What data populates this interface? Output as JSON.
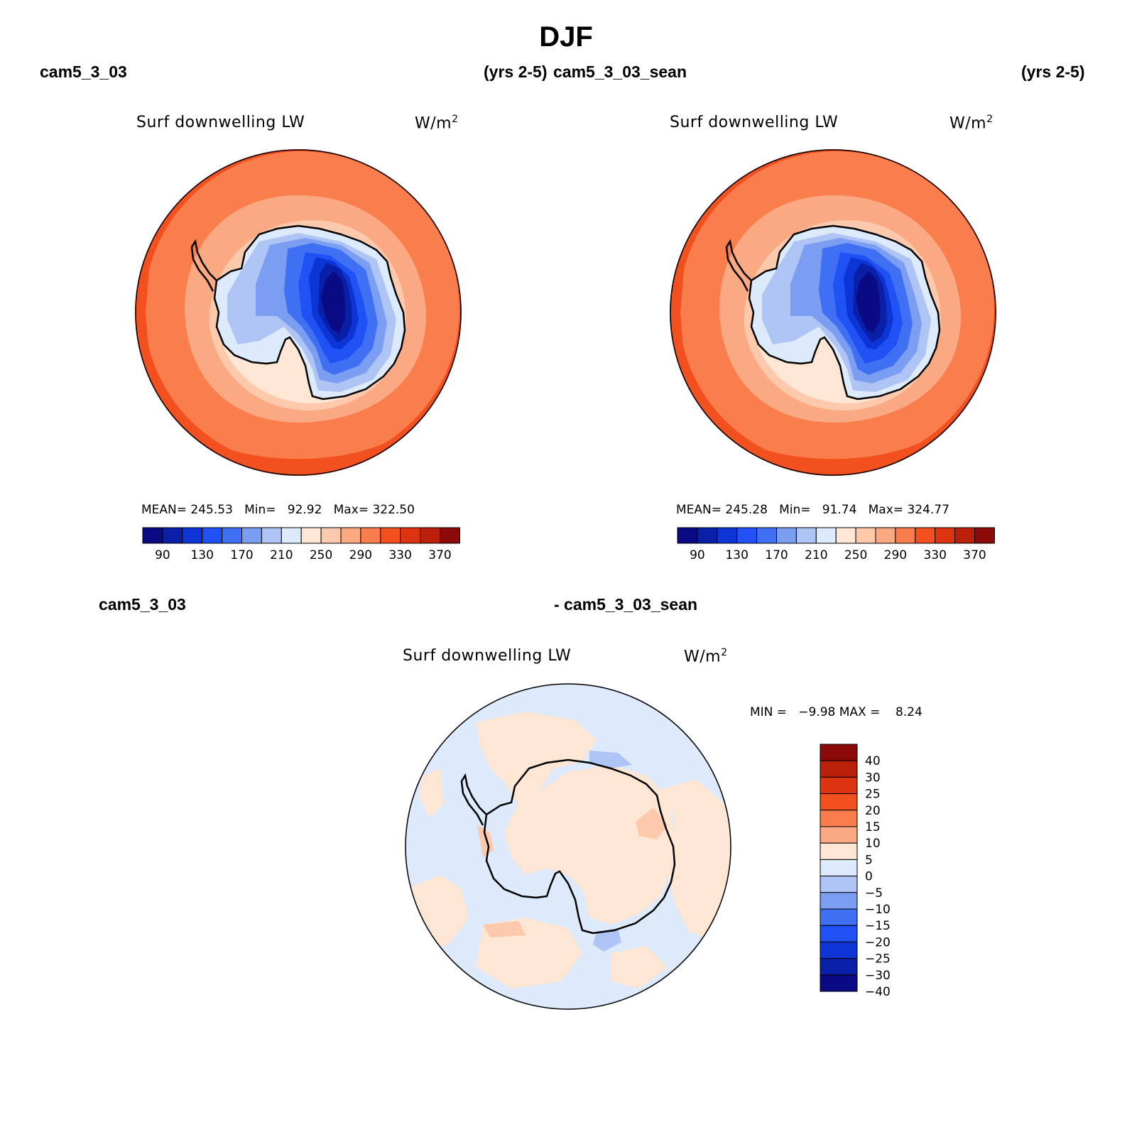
{
  "figure": {
    "title": "DJF"
  },
  "panels": [
    {
      "case": "cam5_3_03",
      "years": "(yrs 2-5)",
      "field": "Surf downwelling LW",
      "units": "W/m",
      "units_sup": "2",
      "stats": {
        "mean_label": "MEAN=",
        "mean": "245.53",
        "min_label": "Min=",
        "min": "92.92",
        "max_label": "Max=",
        "max": "322.50"
      }
    },
    {
      "case": "cam5_3_03_sean",
      "years": "(yrs 2-5)",
      "field": "Surf downwelling LW",
      "units": "W/m",
      "units_sup": "2",
      "stats": {
        "mean_label": "MEAN=",
        "mean": "245.28",
        "min_label": "Min=",
        "min": "91.74",
        "max_label": "Max=",
        "max": "324.77"
      }
    }
  ],
  "diff_panel": {
    "case_a": "cam5_3_03",
    "case_b": "- cam5_3_03_sean",
    "field": "Surf downwelling LW",
    "units": "W/m",
    "units_sup": "2",
    "stats": "MIN =   −9.98 MAX =    8.24"
  },
  "colorbar_abs": {
    "colors": [
      "#0a0a85",
      "#0a1fa8",
      "#0d35d6",
      "#1f51f5",
      "#3f6ff2",
      "#7c9ef2",
      "#aec4f5",
      "#dceafb",
      "#fde6d4",
      "#fcc9ac",
      "#fba982",
      "#fa7d4d",
      "#f3501f",
      "#dc3410",
      "#b8200a",
      "#8c0a0a"
    ],
    "tick_labels": [
      "90",
      "130",
      "170",
      "210",
      "250",
      "290",
      "330",
      "370"
    ]
  },
  "colorbar_diff": {
    "colors": [
      "#8c0a0a",
      "#b8200a",
      "#dc3410",
      "#f3501f",
      "#fa7d4d",
      "#fba982",
      "#fde6d4",
      "#dceafb",
      "#aec4f5",
      "#7c9ef2",
      "#3f6ff2",
      "#1f51f5",
      "#0d35d6",
      "#0a1fa8",
      "#0a0a85"
    ],
    "tick_labels": [
      "40",
      "30",
      "25",
      "20",
      "15",
      "10",
      "5",
      "0",
      "−5",
      "−10",
      "−15",
      "−20",
      "−25",
      "−30",
      "−40"
    ]
  }
}
